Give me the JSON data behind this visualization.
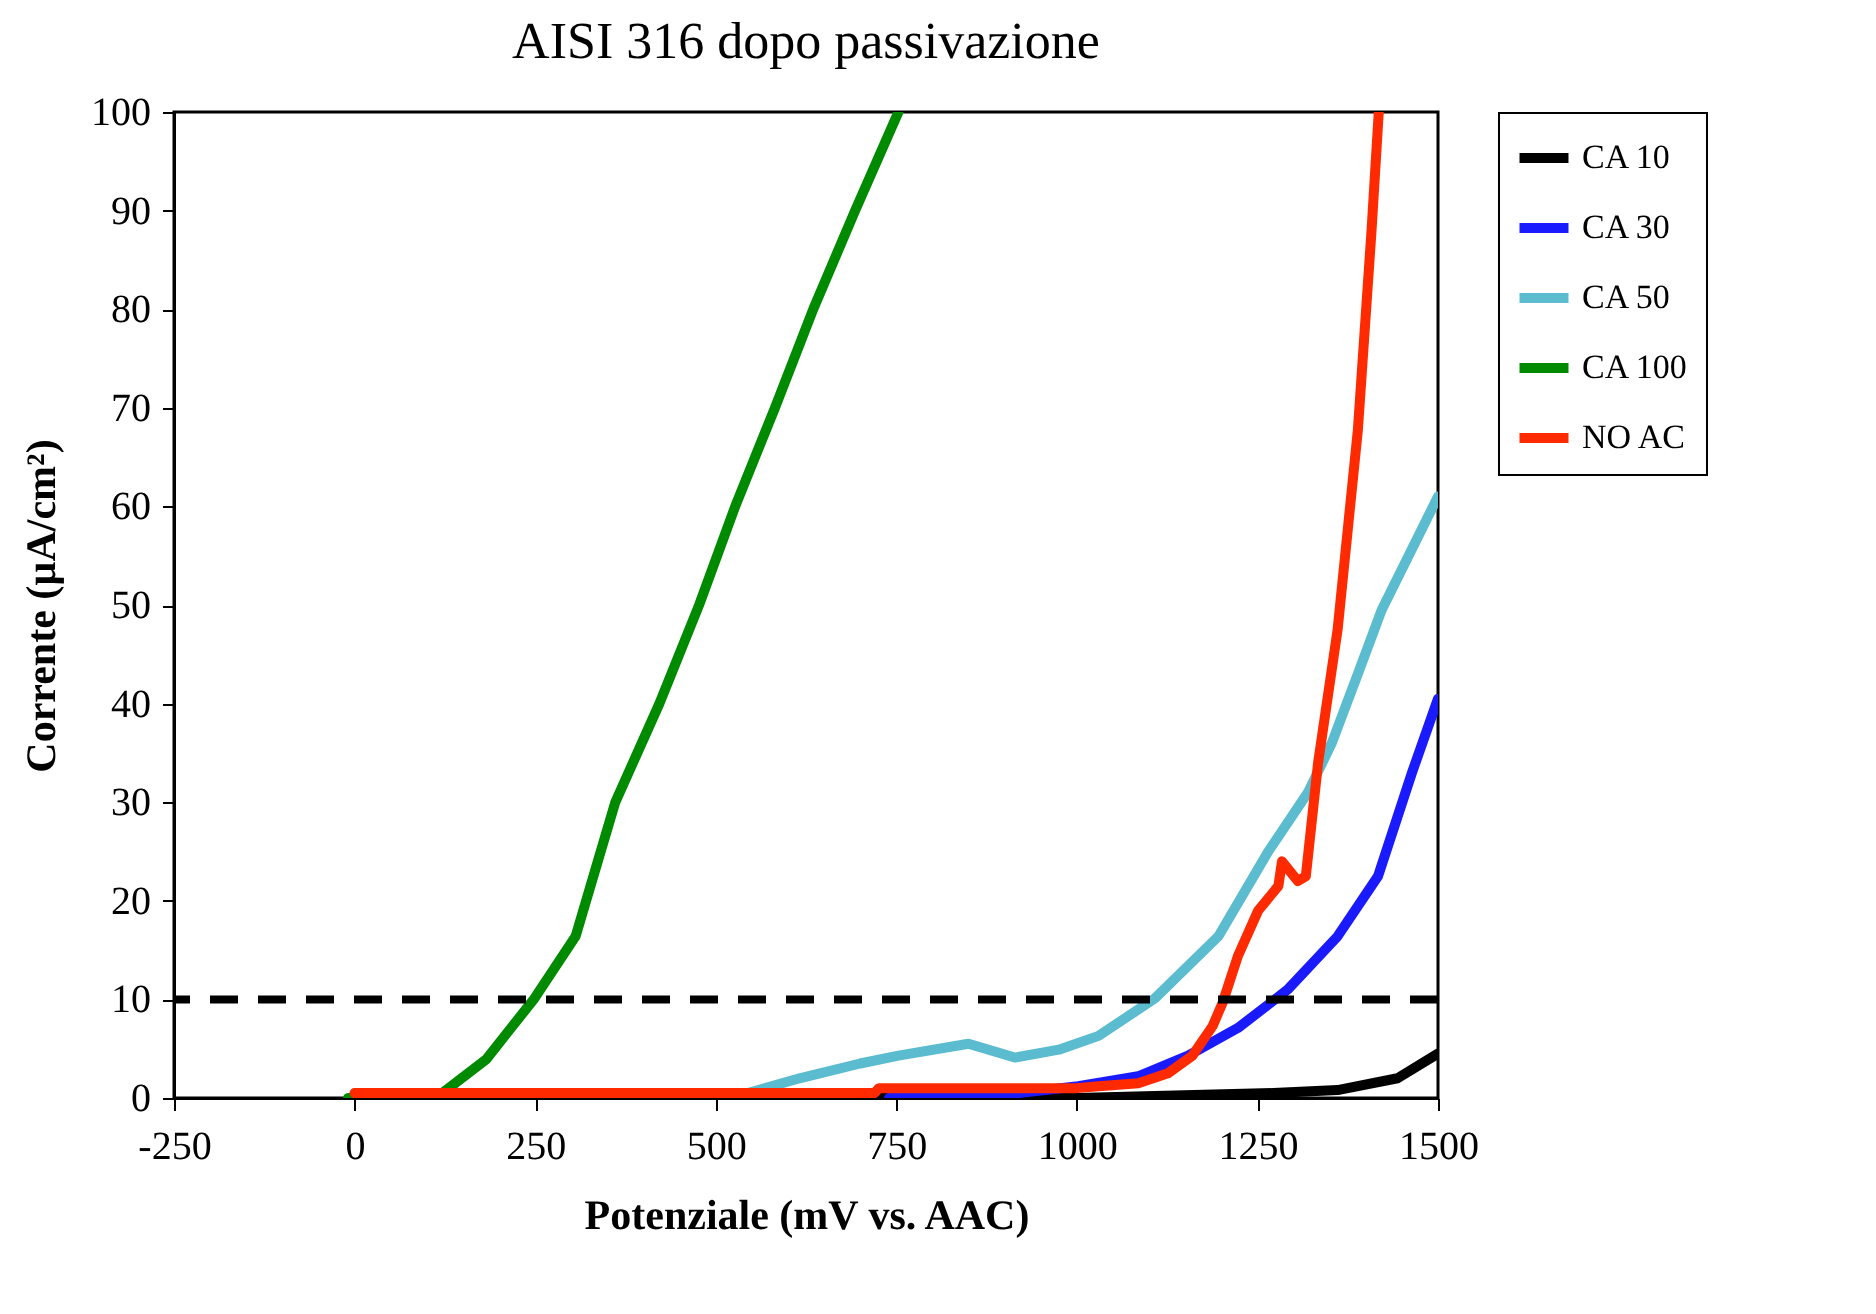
{
  "chart_data": {
    "type": "line",
    "title": "AISI 316 dopo passivazione",
    "xlabel": "Potenziale (mV vs. AAC)",
    "ylabel": "Corrente (µA/cm²)",
    "xlim": [
      -250,
      1500
    ],
    "xticks": [
      -250,
      0,
      250,
      500,
      750,
      1000,
      1250,
      1500
    ],
    "ylim": [
      0,
      100
    ],
    "yticks": [
      0,
      10,
      20,
      30,
      40,
      50,
      60,
      70,
      80,
      90,
      100
    ],
    "grid": false,
    "legend": "right",
    "marker": "none",
    "line_style": "solid",
    "ref_lines": [
      {
        "axis": "y",
        "value": 10,
        "color": "#000000",
        "line_style": "dashed"
      }
    ],
    "series": [
      {
        "name": "CA 10",
        "color": "#000000",
        "x": [
          0,
          1000,
          1272,
          1361,
          1444,
          1500
        ],
        "values": [
          0,
          0,
          0.5,
          0.8,
          2,
          4.5
        ]
      },
      {
        "name": "CA 30",
        "color": "#1a1aff",
        "x": [
          740,
          919,
          1002,
          1085,
          1154,
          1223,
          1292,
          1361,
          1417,
          1464,
          1500
        ],
        "values": [
          0,
          0.5,
          1.2,
          2.2,
          4.3,
          7.1,
          11,
          16.4,
          22.5,
          33,
          40.5
        ]
      },
      {
        "name": "CA 50",
        "color": "#5bbcd0",
        "x": [
          520,
          616,
          700,
          753,
          850,
          914,
          975,
          1030,
          1108,
          1196,
          1265,
          1320,
          1353,
          1389,
          1422,
          1500
        ],
        "values": [
          0,
          2,
          3.5,
          4.3,
          5.5,
          4.1,
          4.9,
          6.3,
          10.1,
          16.4,
          25,
          31,
          36,
          43,
          49.5,
          61
        ]
      },
      {
        "name": "CA 100",
        "color": "#008a00",
        "x": [
          -9,
          118,
          182,
          248,
          306,
          361,
          422,
          477,
          527,
          582,
          635,
          693,
          753
        ],
        "values": [
          0,
          0.3,
          3.9,
          10,
          16.4,
          30,
          40,
          50,
          60,
          70,
          80,
          90,
          100
        ]
      },
      {
        "name": "NO AC",
        "color": "#ff2a00",
        "x": [
          0,
          720,
          726,
          1000,
          1030,
          1085,
          1126,
          1160,
          1188,
          1202,
          1223,
          1251,
          1279,
          1284,
          1306,
          1317,
          1334,
          1361,
          1389,
          1408,
          1418
        ],
        "values": [
          0.5,
          0.5,
          1,
          1,
          1.2,
          1.5,
          2.5,
          4.3,
          7.3,
          9.7,
          14.4,
          19,
          21.5,
          24,
          22,
          22.5,
          34,
          47.5,
          67.7,
          88,
          100
        ]
      }
    ]
  }
}
